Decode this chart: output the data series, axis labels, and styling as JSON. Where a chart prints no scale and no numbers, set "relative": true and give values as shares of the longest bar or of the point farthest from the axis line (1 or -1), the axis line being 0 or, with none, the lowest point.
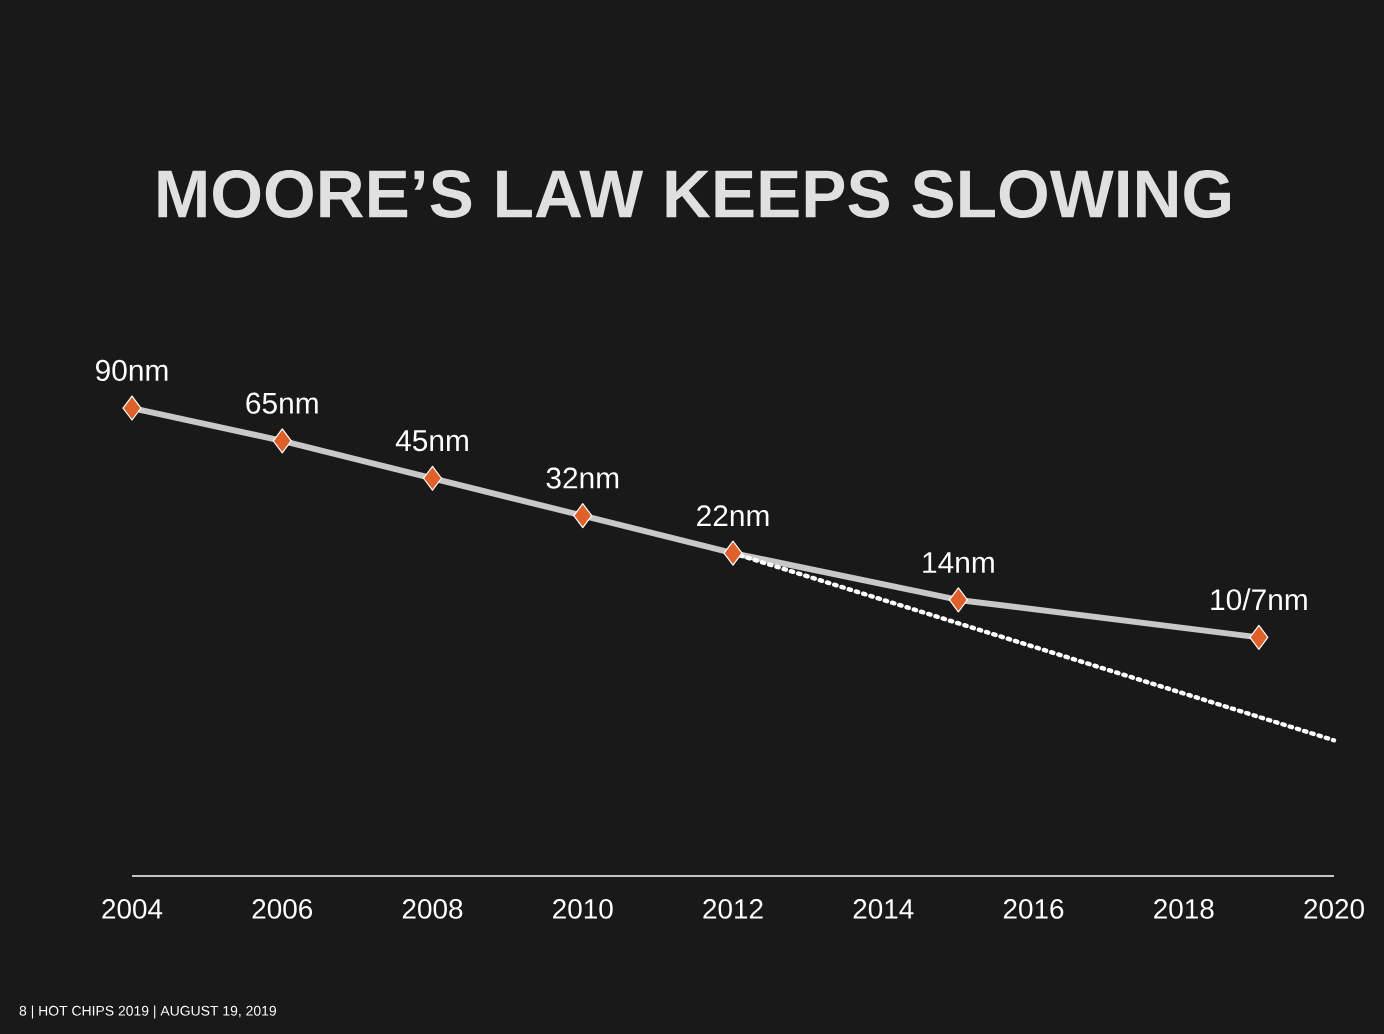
{
  "chart_data": {
    "type": "line",
    "title": "MOORE’S LAW KEEPS SLOWING",
    "relative": true,
    "marker": "diamond",
    "x": [
      2004,
      2006,
      2008,
      2010,
      2012,
      2015,
      2019
    ],
    "xlim": [
      2004,
      2020
    ],
    "xticks": [
      2004,
      2006,
      2008,
      2010,
      2012,
      2014,
      2016,
      2018,
      2020
    ],
    "series": [
      {
        "color": "#c8c8c8",
        "colors": [
          "#e0602a",
          "#e0602a",
          "#e0602a",
          "#e0602a",
          "#e0602a",
          "#e0602a",
          "#e0602a"
        ],
        "values": [
          1,
          0.93,
          0.85,
          0.77,
          0.69,
          0.59,
          0.51
        ]
      },
      {
        "type": "line",
        "x": [
          2012,
          2020
        ],
        "values": [
          0.69,
          0.29
        ],
        "color": "#ffffff",
        "line_style": "dotted",
        "marker": "none"
      }
    ],
    "annotations": [
      {
        "text": "90nm",
        "x": 2004,
        "y": 1
      },
      {
        "text": "65nm",
        "x": 2006,
        "y": 0.93
      },
      {
        "text": "45nm",
        "x": 2008,
        "y": 0.85
      },
      {
        "text": "32nm",
        "x": 2010,
        "y": 0.77
      },
      {
        "text": "22nm",
        "x": 2012,
        "y": 0.69
      },
      {
        "text": "14nm",
        "x": 2015,
        "y": 0.59
      },
      {
        "text": "10/7nm",
        "x": 2019,
        "y": 0.51
      },
      "8 | HOT CHIPS 2019 | AUGUST 19, 2019"
    ]
  }
}
